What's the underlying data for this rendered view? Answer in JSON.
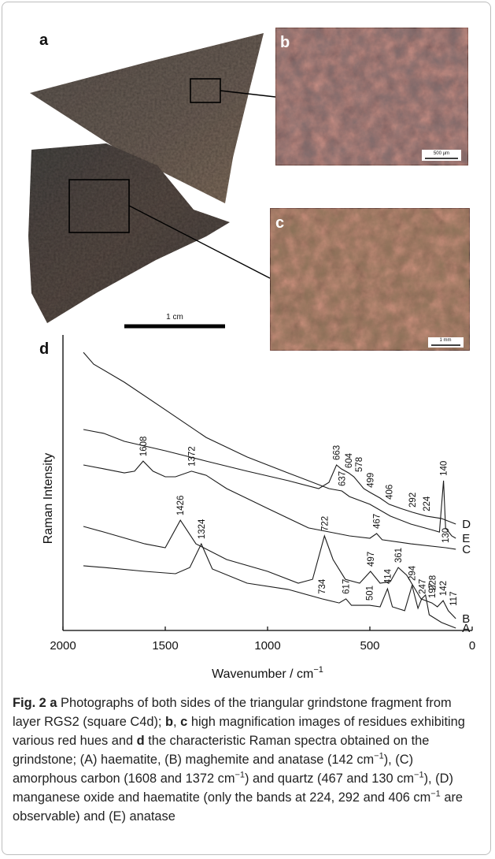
{
  "panel_labels": [
    "a",
    "b",
    "c",
    "d"
  ],
  "scale_bars": [
    "500 µm",
    "1 mm",
    "1 cm"
  ],
  "chart_data": {
    "type": "line",
    "x_label": "Wavenumber / cm",
    "x_label_sup": "−1",
    "y_label": "Raman Intensity",
    "xlim": [
      2000,
      0
    ],
    "xticks": [
      2000,
      1500,
      1000,
      500,
      0
    ],
    "ylim": [
      0,
      100
    ],
    "color": "#1a1a1a",
    "series": [
      {
        "name": "E",
        "x": [
          1900,
          1850,
          1700,
          1500,
          1300,
          1100,
          900,
          700,
          637,
          600,
          500,
          400,
          300,
          200,
          160,
          140,
          130,
          100,
          80
        ],
        "values": [
          94.1,
          90.1,
          84,
          74.7,
          65.3,
          58.7,
          53.3,
          48,
          47.2,
          45.3,
          42.7,
          38.7,
          36,
          34.1,
          33.3,
          50.7,
          34.7,
          32,
          31.2
        ],
        "peaks": [
          637,
          140
        ]
      },
      {
        "name": "D",
        "x": [
          1900,
          1800,
          1700,
          1500,
          1300,
          1100,
          900,
          750,
          700,
          663,
          640,
          604,
          578,
          530,
          499,
          450,
          406,
          350,
          292,
          224,
          150,
          80
        ],
        "values": [
          68,
          66.7,
          64,
          60.8,
          57.3,
          53.9,
          50.7,
          48,
          50.1,
          56,
          54.7,
          53.3,
          52,
          48,
          46.7,
          44.8,
          42.7,
          41.3,
          40,
          38.7,
          37.9,
          36
        ],
        "peaks": [
          663,
          604,
          578,
          499,
          406,
          292,
          224
        ]
      },
      {
        "name": "C",
        "x": [
          1900,
          1800,
          1700,
          1650,
          1608,
          1560,
          1500,
          1450,
          1372,
          1300,
          1200,
          1000,
          800,
          600,
          500,
          467,
          440,
          300,
          130,
          80
        ],
        "values": [
          56,
          54.7,
          53.3,
          53.9,
          57.3,
          53.9,
          52,
          52,
          53.9,
          52.5,
          48,
          41.3,
          34.7,
          32,
          31.2,
          32.8,
          30.7,
          29.3,
          28,
          27.5
        ],
        "peaks": [
          1608,
          1372,
          467,
          130
        ]
      },
      {
        "name": "B",
        "x": [
          1900,
          1800,
          1600,
          1500,
          1426,
          1350,
          1200,
          1000,
          850,
          780,
          722,
          680,
          620,
          550,
          497,
          450,
          400,
          361,
          320,
          250,
          197,
          170,
          142,
          117,
          80
        ],
        "values": [
          35.2,
          33.3,
          29.3,
          28,
          37.3,
          29.3,
          24,
          20,
          16,
          17.3,
          32,
          24,
          17.3,
          16,
          20,
          16,
          16.5,
          21.3,
          18.7,
          10.7,
          9.3,
          8,
          10.1,
          6.7,
          4
        ],
        "peaks": [
          1426,
          722,
          497,
          361,
          197,
          142,
          117
        ]
      },
      {
        "name": "A",
        "x": [
          1900,
          1800,
          1600,
          1450,
          1380,
          1324,
          1270,
          1100,
          900,
          734,
          650,
          617,
          590,
          501,
          450,
          414,
          390,
          330,
          294,
          265,
          247,
          228,
          210,
          150,
          80
        ],
        "values": [
          21.9,
          21.3,
          20,
          19.2,
          21.3,
          29.3,
          20.8,
          16,
          13.9,
          10.7,
          9.3,
          10.7,
          8.5,
          8.5,
          8,
          14.1,
          8,
          6.7,
          15.2,
          7.5,
          10.7,
          12,
          5.3,
          2.7,
          0.8
        ],
        "peaks": [
          1324,
          734,
          617,
          501,
          414,
          294,
          247,
          228
        ]
      }
    ]
  },
  "caption": [
    {
      "text": "Fig. 2",
      "style": "bold"
    },
    {
      "text": " a",
      "style": "bold"
    },
    {
      "text": " Photographs of both sides of the triangular grindstone fragment from layer RGS2 (square C4d); "
    },
    {
      "text": "b",
      "style": "bold"
    },
    {
      "text": ", "
    },
    {
      "text": "c",
      "style": "bold"
    },
    {
      "text": " high magnification images of residues exhibiting various red hues and "
    },
    {
      "text": "d",
      "style": "bold"
    },
    {
      "text": " the characteristic Raman spectra obtained on the grindstone; (A) haematite, (B) maghemite and anatase (142 cm"
    },
    {
      "text": "−1",
      "style": "sup"
    },
    {
      "text": "), (C) amorphous carbon (1608 and 1372 cm"
    },
    {
      "text": "−1",
      "style": "sup"
    },
    {
      "text": ") and quartz (467 and 130 cm"
    },
    {
      "text": "−1",
      "style": "sup"
    },
    {
      "text": "), (D) manganese oxide and haematite (only the bands at 224, 292 and 406 cm"
    },
    {
      "text": "−1",
      "style": "sup"
    },
    {
      "text": " are observable) and (E) anatase"
    }
  ]
}
